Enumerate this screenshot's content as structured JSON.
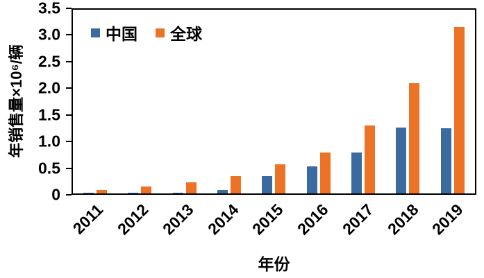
{
  "chart_data": {
    "type": "bar",
    "title": "",
    "xlabel": "年份",
    "ylabel": "年销售量×10⁶/辆",
    "categories": [
      "2011",
      "2012",
      "2013",
      "2014",
      "2015",
      "2016",
      "2017",
      "2018",
      "2019"
    ],
    "series": [
      {
        "key": "china",
        "name": "中国",
        "color": "#3B6AA0",
        "values": [
          0.01,
          0.01,
          0.02,
          0.07,
          0.33,
          0.51,
          0.78,
          1.26,
          1.24
        ]
      },
      {
        "key": "global",
        "name": "全球",
        "color": "#EC7226",
        "values": [
          0.07,
          0.13,
          0.21,
          0.33,
          0.55,
          0.78,
          1.3,
          2.1,
          3.17
        ]
      }
    ],
    "ylim": [
      0,
      3.5
    ],
    "yticks": [
      "0",
      "0.5",
      "1.0",
      "1.5",
      "2.0",
      "2.5",
      "3.0",
      "3.5"
    ],
    "legend_position": "top-left",
    "grid": false
  }
}
